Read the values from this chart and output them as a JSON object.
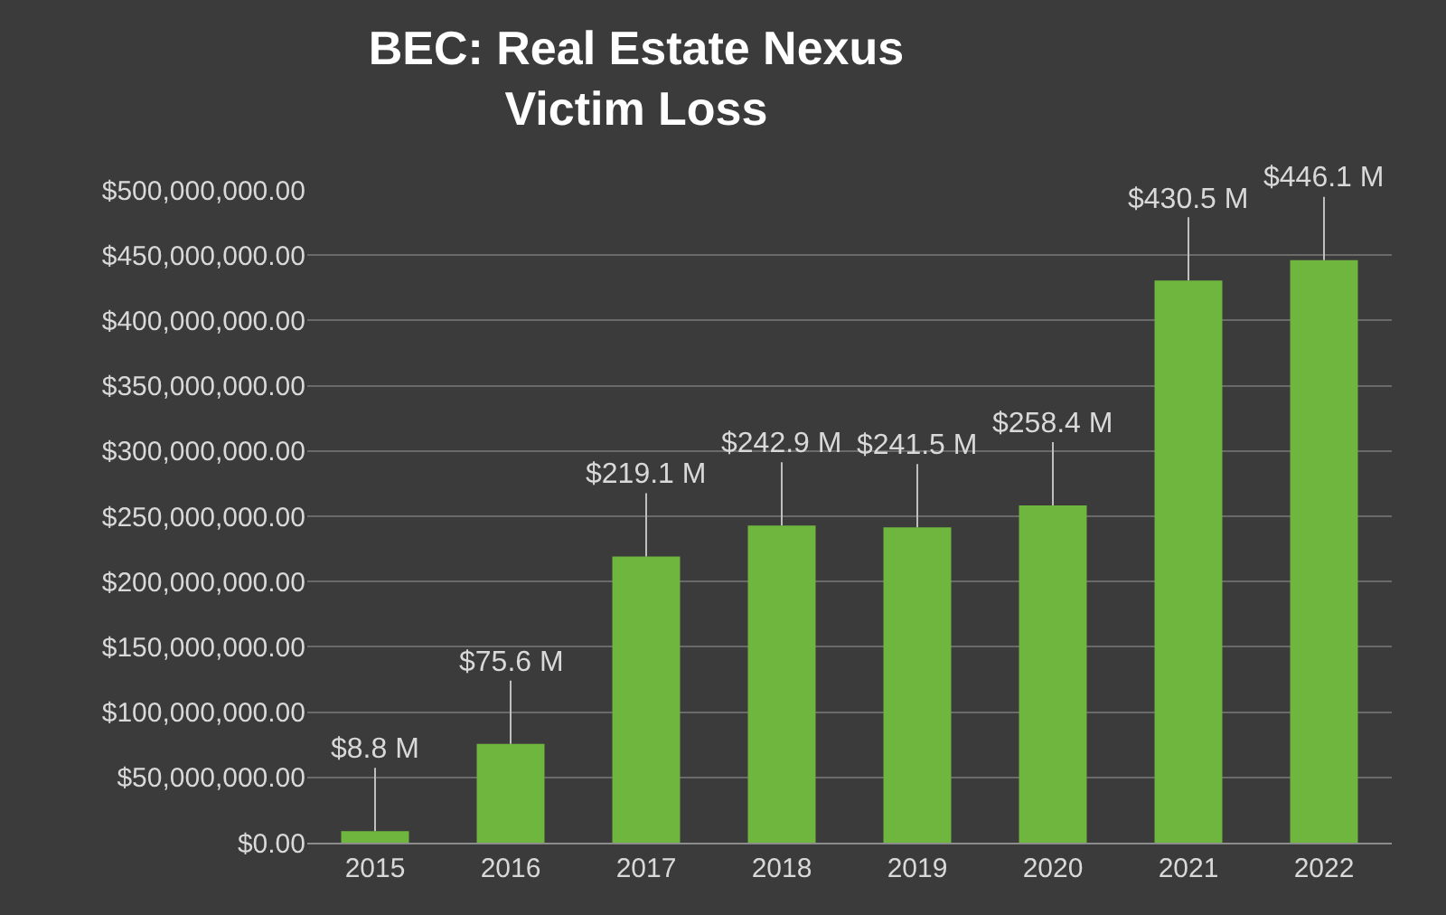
{
  "chart_data": {
    "type": "bar",
    "title": "BEC: Real Estate Nexus\nVictim Loss",
    "categories": [
      "2015",
      "2016",
      "2017",
      "2018",
      "2019",
      "2020",
      "2021",
      "2022"
    ],
    "values": [
      8800000,
      75600000,
      219100000,
      242900000,
      241500000,
      258400000,
      430500000,
      446100000
    ],
    "value_labels": [
      "$8.8 M",
      "$75.6 M",
      "$219.1 M",
      "$242.9 M",
      "$241.5 M",
      "$258.4 M",
      "$430.5 M",
      "$446.1 M"
    ],
    "color": "#6fb63f",
    "ylim": [
      0,
      500000000
    ],
    "yticks": [
      {
        "value": 0,
        "label": "$0.00"
      },
      {
        "value": 50000000,
        "label": "$50,000,000.00"
      },
      {
        "value": 100000000,
        "label": "$100,000,000.00"
      },
      {
        "value": 150000000,
        "label": "$150,000,000.00"
      },
      {
        "value": 200000000,
        "label": "$200,000,000.00"
      },
      {
        "value": 250000000,
        "label": "$250,000,000.00"
      },
      {
        "value": 300000000,
        "label": "$300,000,000.00"
      },
      {
        "value": 350000000,
        "label": "$350,000,000.00"
      },
      {
        "value": 400000000,
        "label": "$400,000,000.00"
      },
      {
        "value": 450000000,
        "label": "$450,000,000.00"
      },
      {
        "value": 500000000,
        "label": "$500,000,000.00"
      }
    ],
    "grid": "y"
  }
}
